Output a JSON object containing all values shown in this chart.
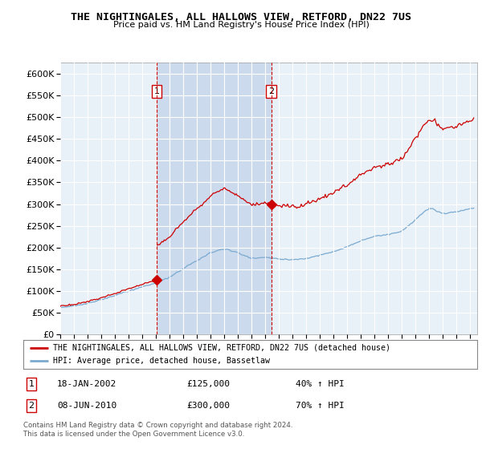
{
  "title": "THE NIGHTINGALES, ALL HALLOWS VIEW, RETFORD, DN22 7US",
  "subtitle": "Price paid vs. HM Land Registry's House Price Index (HPI)",
  "background_color": "#ffffff",
  "plot_bg_color": "#e8f0f8",
  "highlight_color": "#ccdaee",
  "red_line_label": "THE NIGHTINGALES, ALL HALLOWS VIEW, RETFORD, DN22 7US (detached house)",
  "blue_line_label": "HPI: Average price, detached house, Bassetlaw",
  "footer": "Contains HM Land Registry data © Crown copyright and database right 2024.\nThis data is licensed under the Open Government Licence v3.0.",
  "annotation1_date": "18-JAN-2002",
  "annotation1_price": "£125,000",
  "annotation1_hpi": "40% ↑ HPI",
  "annotation2_date": "08-JUN-2010",
  "annotation2_price": "£300,000",
  "annotation2_hpi": "70% ↑ HPI",
  "ylim": [
    0,
    625000
  ],
  "yticks": [
    0,
    50000,
    100000,
    150000,
    200000,
    250000,
    300000,
    350000,
    400000,
    450000,
    500000,
    550000,
    600000
  ],
  "xlim_start": 1995.0,
  "xlim_end": 2025.5,
  "red_color": "#cc0000",
  "blue_color": "#7aaad0",
  "marker1_x": 2002.05,
  "marker1_y": 125000,
  "marker2_x": 2010.44,
  "marker2_y": 300000
}
